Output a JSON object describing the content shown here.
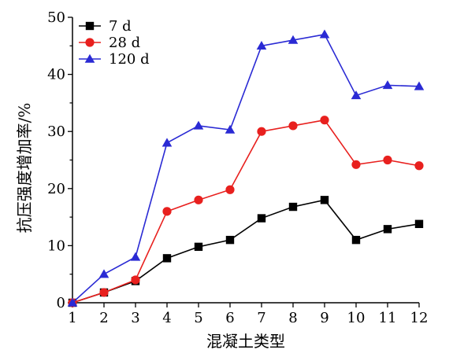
{
  "chart_data": {
    "type": "line",
    "xlabel": "混凝土类型",
    "ylabel": "抗压强度增加率/%",
    "x": [
      1,
      2,
      3,
      4,
      5,
      6,
      7,
      8,
      9,
      10,
      11,
      12
    ],
    "xlim": [
      1,
      12
    ],
    "ylim": [
      0,
      50
    ],
    "xticks": [
      "1",
      "2",
      "3",
      "4",
      "5",
      "6",
      "7",
      "8",
      "9",
      "10",
      "11",
      "12"
    ],
    "yticks": [
      "0",
      "10",
      "20",
      "30",
      "40",
      "50"
    ],
    "grid": false,
    "legend_position": "top-left",
    "series": [
      {
        "name": "7 d",
        "color": "#000000",
        "marker": "square",
        "values": [
          0,
          1.8,
          3.8,
          7.8,
          9.8,
          11,
          14.8,
          16.8,
          18,
          11,
          12.9,
          13.8
        ]
      },
      {
        "name": "28 d",
        "color": "#e8201e",
        "marker": "circle",
        "values": [
          0,
          1.8,
          4,
          16,
          18,
          19.8,
          30,
          31,
          32,
          24.2,
          25,
          24
        ]
      },
      {
        "name": "120 d",
        "color": "#2a2ad4",
        "marker": "triangle",
        "values": [
          0,
          5,
          8,
          28,
          31,
          30.3,
          45,
          46,
          47,
          36.3,
          38.1,
          37.9
        ]
      }
    ]
  }
}
